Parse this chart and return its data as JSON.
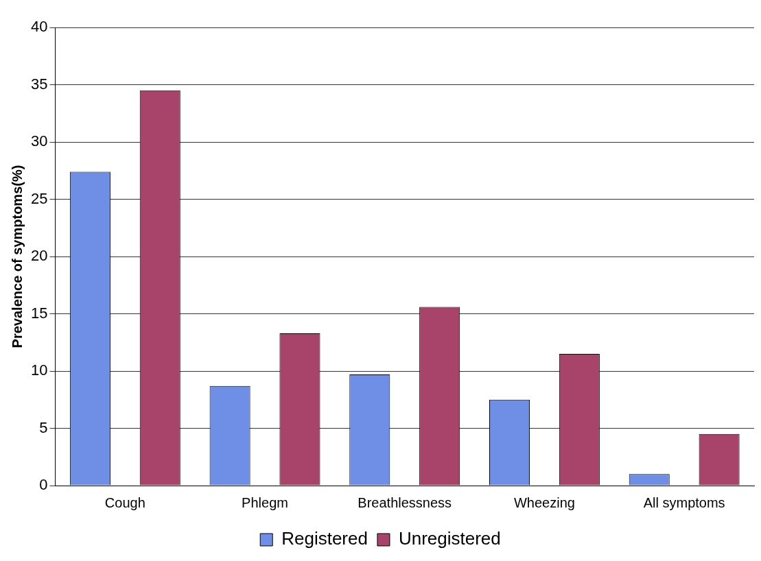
{
  "chart_data": {
    "type": "bar",
    "ylabel": "Prevalence of symptoms(%)",
    "categories": [
      "Cough",
      "Phlegm",
      "Breathlessness",
      "Wheezing",
      "All symptoms"
    ],
    "series": [
      {
        "name": "Registered",
        "color": "#6f8fe6",
        "values": [
          27.4,
          8.7,
          9.7,
          7.5,
          1.0
        ]
      },
      {
        "name": "Unregistered",
        "color": "#a8436a",
        "values": [
          34.5,
          13.3,
          15.6,
          11.5,
          4.5
        ]
      }
    ],
    "ylim": [
      0,
      40
    ],
    "yticks": [
      0,
      5,
      10,
      15,
      20,
      25,
      30,
      35,
      40
    ],
    "grid": "y",
    "legend": "bottom"
  }
}
